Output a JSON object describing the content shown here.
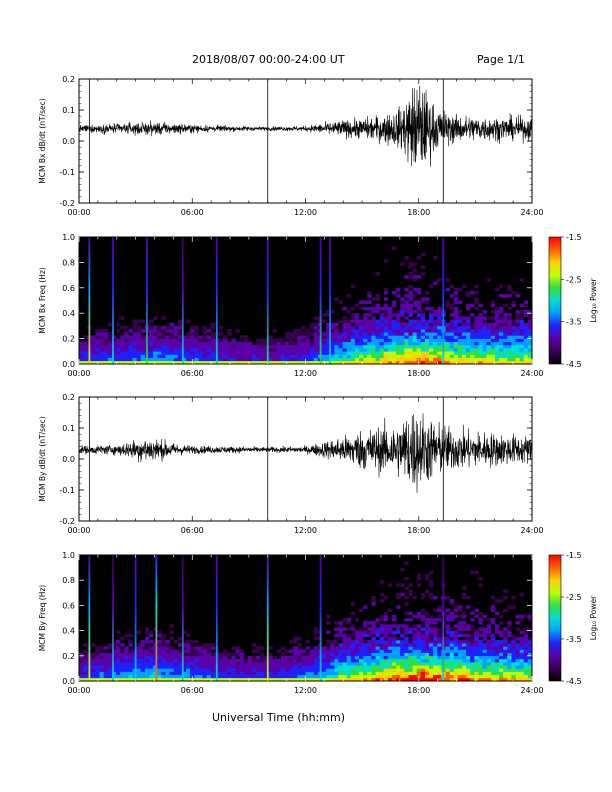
{
  "header": {
    "title": "2018/08/07  00:00-24:00 UT",
    "page": "Page 1/1"
  },
  "footer": {
    "xlabel": "Universal Time (hh:mm)"
  },
  "colors": {
    "trace": "#000000",
    "colormap": [
      "#000000",
      "#3a0050",
      "#5a00a8",
      "#2020ff",
      "#00a0ff",
      "#00e0d0",
      "#30e040",
      "#c0ff00",
      "#ffd000",
      "#ff6000",
      "#ff0000"
    ]
  },
  "chart_data": [
    {
      "type": "line",
      "ylabel": "MCM Bx dB/dt (nT/sec)",
      "ylim": [
        -0.2,
        0.2
      ],
      "yticks": [
        "0.2",
        "0.1",
        "0.0",
        "-0.1",
        "-0.2"
      ],
      "xlim_hours": [
        0,
        24
      ],
      "xticks": [
        "00:00",
        "06:00",
        "12:00",
        "18:00",
        "24:00"
      ],
      "baseline": 0.04,
      "envelope": {
        "hours": [
          0,
          2,
          4,
          6,
          8,
          10,
          12,
          14,
          15,
          16,
          17,
          17.6,
          18,
          18.5,
          19,
          20,
          22,
          24
        ],
        "amplitude": [
          0.01,
          0.015,
          0.02,
          0.012,
          0.008,
          0.006,
          0.008,
          0.025,
          0.03,
          0.04,
          0.06,
          0.12,
          0.15,
          0.1,
          0.06,
          0.04,
          0.035,
          0.035
        ]
      },
      "spikes": [
        {
          "hour": 0.55,
          "low": -0.2,
          "high": 0.2
        },
        {
          "hour": 10.0,
          "low": -0.2,
          "high": 0.2
        },
        {
          "hour": 19.3,
          "low": -0.2,
          "high": 0.2
        }
      ]
    },
    {
      "type": "heatmap",
      "ylabel": "MCM Bx Freq (Hz)",
      "ylim": [
        0,
        1.0
      ],
      "yticks": [
        "1.0",
        "0.8",
        "0.6",
        "0.4",
        "0.2",
        "0.0"
      ],
      "xlim_hours": [
        0,
        24
      ],
      "xticks": [
        "00:00",
        "06:00",
        "12:00",
        "18:00",
        "24:00"
      ],
      "colorbar": {
        "label": "Log₁₀ Power",
        "range": [
          -4.5,
          -1.5
        ],
        "ticks": [
          "-1.5",
          "-2.5",
          "-3.5",
          "-4.5"
        ]
      },
      "activity": {
        "hours": [
          0,
          2,
          4,
          6,
          8,
          10,
          12,
          14,
          16,
          17,
          18,
          20,
          22,
          24
        ],
        "level": [
          0.2,
          0.25,
          0.3,
          0.25,
          0.2,
          0.18,
          0.22,
          0.4,
          0.55,
          0.6,
          0.65,
          0.55,
          0.5,
          0.5
        ]
      },
      "bright_columns": [
        {
          "hour": 0.55,
          "power": 0.75
        },
        {
          "hour": 1.8,
          "power": 0.5
        },
        {
          "hour": 3.6,
          "power": 0.55
        },
        {
          "hour": 5.5,
          "power": 0.45
        },
        {
          "hour": 7.3,
          "power": 0.5
        },
        {
          "hour": 10.0,
          "power": 0.6
        },
        {
          "hour": 12.8,
          "power": 0.55
        },
        {
          "hour": 13.3,
          "power": 0.5
        },
        {
          "hour": 19.3,
          "power": 0.5
        }
      ]
    },
    {
      "type": "line",
      "ylabel": "MCM By dB/dt (nT/sec)",
      "ylim": [
        -0.2,
        0.2
      ],
      "yticks": [
        "0.2",
        "0.1",
        "0.0",
        "-0.1",
        "-0.2"
      ],
      "xlim_hours": [
        0,
        24
      ],
      "xticks": [
        "00:00",
        "06:00",
        "12:00",
        "18:00",
        "24:00"
      ],
      "baseline": 0.03,
      "envelope": {
        "hours": [
          0,
          2,
          3,
          3.5,
          4,
          5,
          6,
          8,
          10,
          12,
          14,
          15,
          16,
          17,
          17.6,
          18,
          18.5,
          19,
          20,
          22,
          24
        ],
        "amplitude": [
          0.012,
          0.015,
          0.03,
          0.04,
          0.035,
          0.02,
          0.012,
          0.01,
          0.008,
          0.01,
          0.04,
          0.06,
          0.07,
          0.08,
          0.13,
          0.12,
          0.1,
          0.08,
          0.06,
          0.05,
          0.04
        ]
      },
      "spikes": [
        {
          "hour": 0.55,
          "low": -0.2,
          "high": 0.2
        },
        {
          "hour": 10.0,
          "low": -0.2,
          "high": 0.2
        },
        {
          "hour": 19.3,
          "low": -0.2,
          "high": 0.2
        }
      ]
    },
    {
      "type": "heatmap",
      "ylabel": "MCM By Freq (Hz)",
      "ylim": [
        0,
        1.0
      ],
      "yticks": [
        "1.0",
        "0.8",
        "0.6",
        "0.4",
        "0.2",
        "0.0"
      ],
      "xlim_hours": [
        0,
        24
      ],
      "xticks": [
        "00:00",
        "06:00",
        "12:00",
        "18:00",
        "24:00"
      ],
      "colorbar": {
        "label": "Log₁₀ Power",
        "range": [
          -4.5,
          -1.5
        ],
        "ticks": [
          "-1.5",
          "-2.5",
          "-3.5",
          "-4.5"
        ]
      },
      "activity": {
        "hours": [
          0,
          2,
          4,
          6,
          8,
          10,
          12,
          14,
          16,
          17,
          18,
          20,
          22,
          24
        ],
        "level": [
          0.22,
          0.28,
          0.35,
          0.28,
          0.22,
          0.2,
          0.25,
          0.45,
          0.6,
          0.65,
          0.7,
          0.6,
          0.55,
          0.5
        ]
      },
      "bright_columns": [
        {
          "hour": 0.55,
          "power": 0.7
        },
        {
          "hour": 1.8,
          "power": 0.45
        },
        {
          "hour": 3.0,
          "power": 0.5
        },
        {
          "hour": 4.1,
          "power": 0.85
        },
        {
          "hour": 5.5,
          "power": 0.45
        },
        {
          "hour": 7.3,
          "power": 0.5
        },
        {
          "hour": 10.0,
          "power": 0.65
        },
        {
          "hour": 12.8,
          "power": 0.5
        },
        {
          "hour": 19.3,
          "power": 0.45
        }
      ]
    }
  ]
}
